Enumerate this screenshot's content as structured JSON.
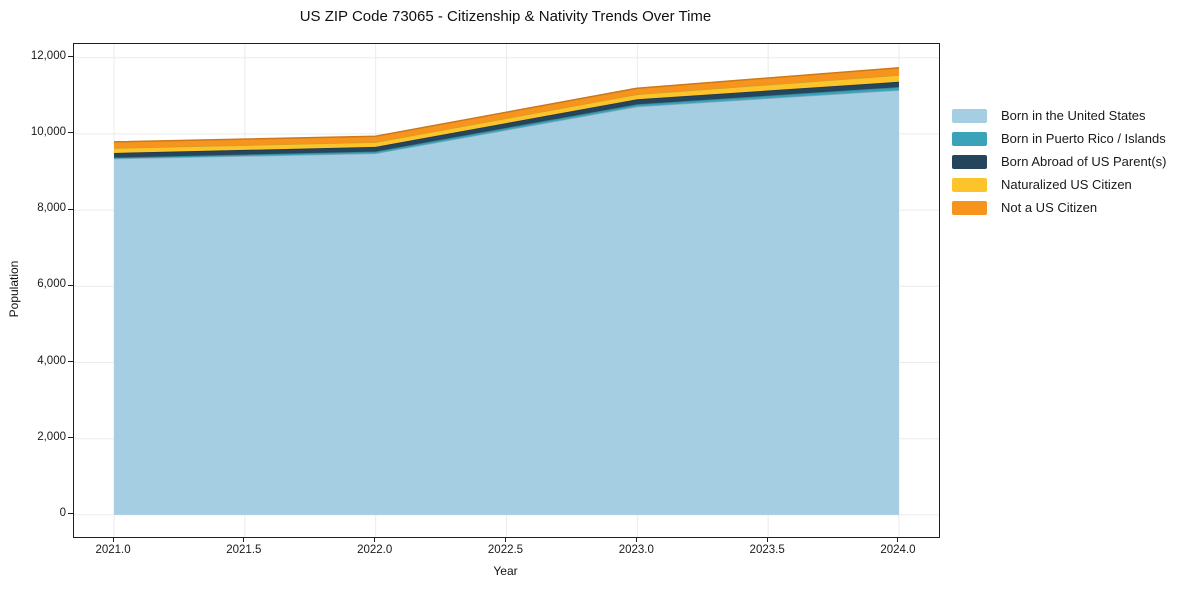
{
  "chart_data": {
    "type": "area",
    "stacked": true,
    "title": "US ZIP Code 73065 - Citizenship & Nativity Trends Over Time",
    "xlabel": "Year",
    "ylabel": "Population",
    "x": [
      2021,
      2022,
      2023,
      2024
    ],
    "series": [
      {
        "name": "Born in the United States",
        "color": "#a6cee3",
        "values": [
          9350,
          9490,
          10720,
          11150
        ]
      },
      {
        "name": "Born in Puerto Rico / Islands",
        "color": "#3aa2b9",
        "values": [
          30,
          50,
          60,
          80
        ]
      },
      {
        "name": "Born Abroad of US Parent(s)",
        "color": "#24455c",
        "values": [
          120,
          120,
          130,
          140
        ]
      },
      {
        "name": "Naturalized US Citizen",
        "color": "#fdc32b",
        "values": [
          130,
          125,
          130,
          175
        ]
      },
      {
        "name": "Not a US Citizen",
        "color": "#f7941e",
        "values": [
          160,
          155,
          160,
          190
        ]
      }
    ],
    "xlim": [
      2020.847,
      2024.153
    ],
    "ylim": [
      -580,
      12360
    ],
    "xticks": [
      2021.0,
      2021.5,
      2022.0,
      2022.5,
      2023.0,
      2023.5,
      2024.0
    ],
    "xtick_labels": [
      "2021.0",
      "2021.5",
      "2022.0",
      "2022.5",
      "2023.0",
      "2023.5",
      "2024.0"
    ],
    "yticks": [
      0,
      2000,
      4000,
      6000,
      8000,
      10000,
      12000
    ],
    "ytick_labels": [
      "0",
      "2,000",
      "4,000",
      "6,000",
      "8,000",
      "10,000",
      "12,000"
    ],
    "grid": true,
    "grid_color": "#ebebeb",
    "spine_color": "#1f1f1f",
    "legend_position": "right-outside"
  }
}
